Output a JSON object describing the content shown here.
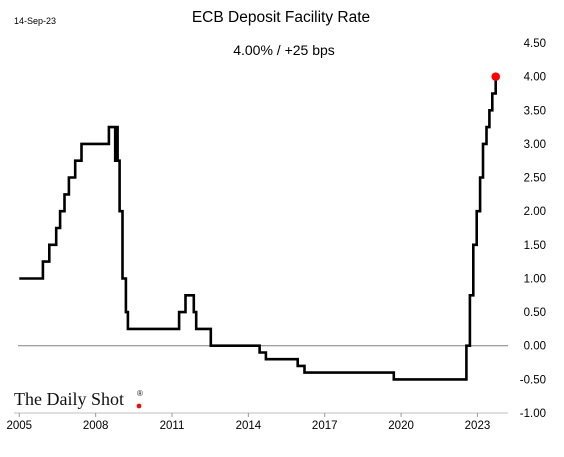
{
  "header": {
    "date": "14-Sep-23",
    "title": "ECB Deposit Facility Rate",
    "subtitle": "4.00%  /  +25 bps"
  },
  "brand": {
    "name": "The Daily Shot",
    "mark": "®",
    "dot_color": "#e3120b"
  },
  "colors": {
    "line": "#000000",
    "last_point": "#ff0000",
    "zero_line": "#808080",
    "axis": "#bfbfbf"
  },
  "chart_data": {
    "type": "line",
    "title": "ECB Deposit Facility Rate",
    "subtitle": "4.00%  /  +25 bps",
    "xlabel": "",
    "ylabel": "",
    "step": true,
    "x_ticks": [
      2005,
      2008,
      2011,
      2014,
      2017,
      2020,
      2023
    ],
    "x_tick_labels": [
      "2005",
      "2008",
      "2011",
      "2014",
      "2017",
      "2020",
      "2023"
    ],
    "xlim": [
      2004.95,
      2024.2
    ],
    "y_ticks": [
      -1.0,
      -0.5,
      0.0,
      0.5,
      1.0,
      1.5,
      2.0,
      2.5,
      3.0,
      3.5,
      4.0,
      4.5
    ],
    "y_tick_labels": [
      "-1.00",
      "-0.50",
      "0.00",
      "0.50",
      "1.00",
      "1.50",
      "2.00",
      "2.50",
      "3.00",
      "3.50",
      "4.00",
      "4.50"
    ],
    "ylim": [
      -1.0,
      4.7
    ],
    "y_axis_position": "right",
    "grid": false,
    "zero_line": true,
    "series": [
      {
        "x": [
          "2005-01-01",
          "2005-12-06",
          "2006-03-08",
          "2006-06-15",
          "2006-08-09",
          "2006-10-11",
          "2006-12-13",
          "2007-03-14",
          "2007-06-13",
          "2008-07-09",
          "2008-10-08",
          "2008-10-15",
          "2008-11-12",
          "2008-12-10",
          "2009-01-21",
          "2009-03-11",
          "2009-04-08",
          "2009-05-13",
          "2011-04-13",
          "2011-07-13",
          "2011-11-09",
          "2011-12-14",
          "2012-07-11",
          "2014-06-11",
          "2014-09-10",
          "2015-12-09",
          "2016-03-16",
          "2019-09-18",
          "2022-07-27",
          "2022-09-14",
          "2022-11-02",
          "2022-12-21",
          "2023-02-08",
          "2023-03-22",
          "2023-05-10",
          "2023-06-21",
          "2023-08-02",
          "2023-09-20"
        ],
        "values": [
          1.0,
          1.25,
          1.5,
          1.75,
          2.0,
          2.25,
          2.5,
          2.75,
          3.0,
          3.25,
          2.75,
          3.25,
          2.75,
          2.0,
          1.0,
          0.5,
          0.25,
          0.25,
          0.5,
          0.75,
          0.5,
          0.25,
          0.0,
          -0.1,
          -0.2,
          -0.3,
          -0.4,
          -0.5,
          0.0,
          0.75,
          1.5,
          2.0,
          2.5,
          3.0,
          3.25,
          3.5,
          3.75,
          4.0
        ],
        "end_date": "2023-09-14",
        "last_value": 4.0
      }
    ]
  }
}
